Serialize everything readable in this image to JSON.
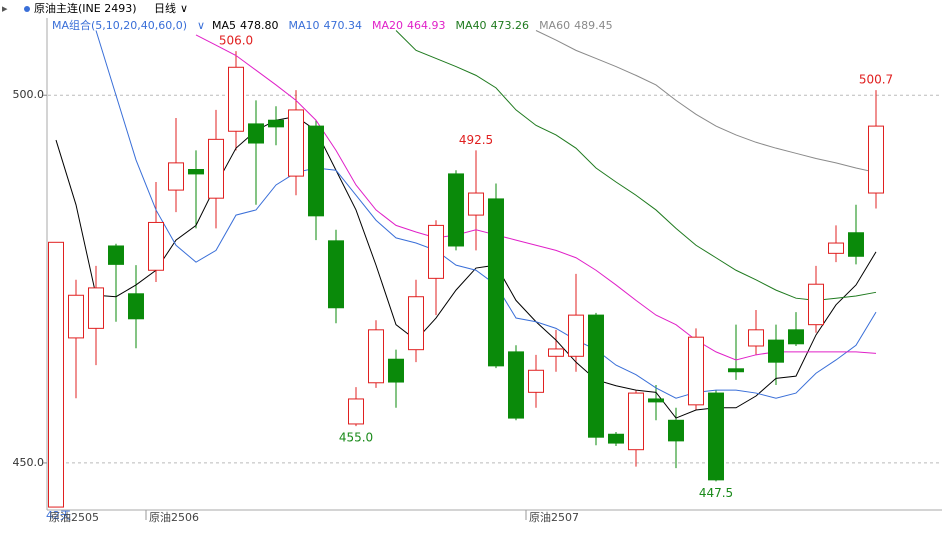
{
  "header": {
    "title": "原油主连(INE 2493)",
    "period": "日线"
  },
  "chart_data": {
    "type": "candlestick",
    "ma_group": "MA组合(5,10,20,40,60,0)",
    "period_label": "42天",
    "up_color": "#e02020",
    "down_color": "#0a8a0a",
    "ylim": [
      443.6,
      510.5
    ],
    "yticks": [
      {
        "value": 500,
        "label": "500.0"
      },
      {
        "value": 450,
        "label": "450.0"
      }
    ],
    "grid": true,
    "x_labels": [
      {
        "index": 0,
        "label": "原油2505"
      },
      {
        "index": 5,
        "label": "原油2506"
      },
      {
        "index": 24,
        "label": "原油2507"
      }
    ],
    "open": [
      444.0,
      467.0,
      468.3,
      479.5,
      473.0,
      476.2,
      487.1,
      489.9,
      486.0,
      495.1,
      496.1,
      496.6,
      489.0,
      495.8,
      480.2,
      455.3,
      460.9,
      464.1,
      465.4,
      475.1,
      489.3,
      483.7,
      485.9,
      465.1,
      459.6,
      464.5,
      464.5,
      470.1,
      453.9,
      451.8,
      458.7,
      455.8,
      457.9,
      459.5,
      462.8,
      465.9,
      466.7,
      468.1,
      468.8,
      478.5,
      481.3,
      486.7
    ],
    "high": [
      480.0,
      474.9,
      476.8,
      479.8,
      476.9,
      488.2,
      496.9,
      492.5,
      498.0,
      506.0,
      499.3,
      498.5,
      500.7,
      496.6,
      481.7,
      460.3,
      469.4,
      465.4,
      474.9,
      483.0,
      489.8,
      492.5,
      488.0,
      466.0,
      464.7,
      468.1,
      475.7,
      470.4,
      454.2,
      459.9,
      460.6,
      457.5,
      468.3,
      459.9,
      468.8,
      470.8,
      468.8,
      470.5,
      476.8,
      482.3,
      485.1,
      500.7
    ],
    "low": [
      444.0,
      458.8,
      463.3,
      469.2,
      465.6,
      474.6,
      484.1,
      481.9,
      481.9,
      492.5,
      485.1,
      493.2,
      486.4,
      480.3,
      469.0,
      455.0,
      460.2,
      457.5,
      463.7,
      470.1,
      478.9,
      478.9,
      462.9,
      455.8,
      457.5,
      462.4,
      462.4,
      452.4,
      452.3,
      449.5,
      455.8,
      449.3,
      457.2,
      447.5,
      461.3,
      464.7,
      460.6,
      465.9,
      467.7,
      477.3,
      477.0,
      484.6
    ],
    "close": [
      480.0,
      472.8,
      473.8,
      477.0,
      469.6,
      482.7,
      490.8,
      489.3,
      494.0,
      503.8,
      493.5,
      495.7,
      498.0,
      483.6,
      471.1,
      458.7,
      468.1,
      461.0,
      472.6,
      482.3,
      479.5,
      486.7,
      463.2,
      456.1,
      462.6,
      465.5,
      470.1,
      453.5,
      452.7,
      459.5,
      458.3,
      453.0,
      467.1,
      447.7,
      462.4,
      468.1,
      463.7,
      466.2,
      474.3,
      479.9,
      478.1,
      495.8
    ],
    "annotations": [
      {
        "index": 9,
        "value": 506.0,
        "label": "506.0",
        "color": "#e02020"
      },
      {
        "index": 15,
        "value": 455.0,
        "label": "455.0",
        "color": "#1a8a1a"
      },
      {
        "index": 21,
        "value": 492.5,
        "label": "492.5",
        "color": "#e02020"
      },
      {
        "index": 33,
        "value": 447.5,
        "label": "447.5",
        "color": "#1a8a1a"
      },
      {
        "index": 41,
        "value": 500.7,
        "label": "500.7",
        "color": "#e02020"
      }
    ],
    "series": [
      {
        "name": "MA5",
        "legend_label": "478.80",
        "color": "#000000",
        "values": [
          493.9,
          485.1,
          472.8,
          472.6,
          474.2,
          476.2,
          480.3,
          482.3,
          487.8,
          492.8,
          495.2,
          496.6,
          497.1,
          495.2,
          489.8,
          484.4,
          476.9,
          468.8,
          466.7,
          469.7,
          473.5,
          476.5,
          476.9,
          472.1,
          469.2,
          466.7,
          463.7,
          461.3,
          460.5,
          459.9,
          459.6,
          456.1,
          457.2,
          457.5,
          457.5,
          459.1,
          461.5,
          461.8,
          467.4,
          471.5,
          474.2,
          478.7
        ]
      },
      {
        "name": "MA10",
        "legend_label": "470.34",
        "color": "#3a6fd8",
        "values": [
          null,
          null,
          508.8,
          500.0,
          491.2,
          484.4,
          479.6,
          477.3,
          478.9,
          483.7,
          484.4,
          487.8,
          489.5,
          490.1,
          489.8,
          486.4,
          483.0,
          480.6,
          479.9,
          478.9,
          476.9,
          476.2,
          474.2,
          469.7,
          469.2,
          468.3,
          466.7,
          465.4,
          463.3,
          462.0,
          460.2,
          458.8,
          459.6,
          459.9,
          459.9,
          459.5,
          458.8,
          459.5,
          462.2,
          464.0,
          466.0,
          470.5
        ]
      },
      {
        "name": "MA20",
        "legend_label": "464.93",
        "color": "#e020c8",
        "values": [
          null,
          null,
          null,
          null,
          null,
          null,
          null,
          508.2,
          506.8,
          505.4,
          503.4,
          501.4,
          499.3,
          496.6,
          492.5,
          487.8,
          484.4,
          482.3,
          481.4,
          480.6,
          481.0,
          481.7,
          481.0,
          480.3,
          479.6,
          478.9,
          477.9,
          476.2,
          474.2,
          472.1,
          470.1,
          468.8,
          466.7,
          465.1,
          464.0,
          464.7,
          465.1,
          465.1,
          465.1,
          465.1,
          465.1,
          464.9
        ]
      },
      {
        "name": "MA40",
        "legend_label": "473.26",
        "color": "#1f7a1f",
        "values": [
          null,
          null,
          null,
          null,
          null,
          null,
          null,
          null,
          null,
          null,
          null,
          null,
          null,
          null,
          null,
          null,
          null,
          508.8,
          506.1,
          505.0,
          503.9,
          502.7,
          501.0,
          498.0,
          495.9,
          494.6,
          492.8,
          490.1,
          488.2,
          486.4,
          484.4,
          481.9,
          479.6,
          477.9,
          476.2,
          474.9,
          473.5,
          472.4,
          472.1,
          472.4,
          472.7,
          473.2
        ]
      },
      {
        "name": "MA60",
        "legend_label": "489.45",
        "color": "#8a8a8a",
        "values": [
          null,
          null,
          null,
          null,
          null,
          null,
          null,
          null,
          null,
          null,
          null,
          null,
          null,
          null,
          null,
          null,
          null,
          null,
          null,
          null,
          null,
          null,
          null,
          null,
          508.8,
          507.5,
          506.1,
          505.0,
          503.9,
          502.7,
          501.4,
          499.3,
          497.4,
          495.8,
          494.6,
          493.6,
          492.8,
          492.1,
          491.4,
          490.8,
          490.1,
          489.5
        ]
      }
    ]
  }
}
